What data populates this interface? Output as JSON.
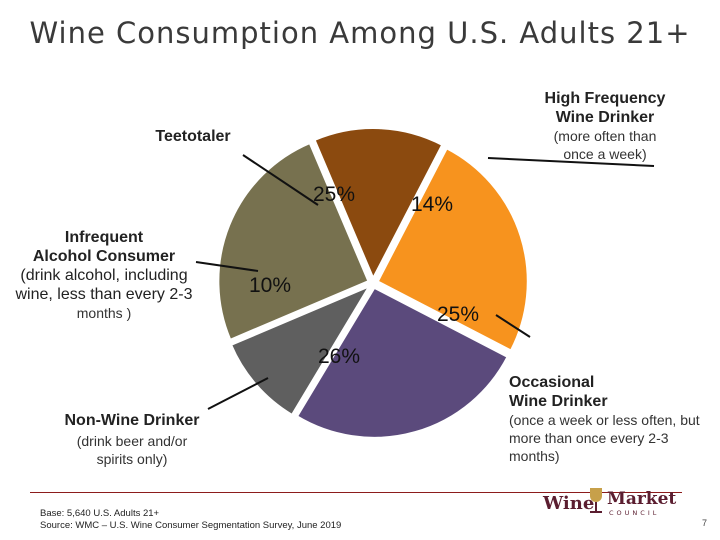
{
  "title": "Wine Consumption Among U.S. Adults 21+",
  "chart_data": {
    "type": "pie",
    "title": "Wine Consumption Among U.S. Adults 21+",
    "slices": [
      {
        "name": "High Frequency Wine Drinker",
        "detail": "(more often than once a week)",
        "value": 14,
        "label": "14%",
        "color": "#8b4a0f"
      },
      {
        "name": "Occasional Wine Drinker",
        "detail": "(once a week or less often, but more than once every 2-3 months)",
        "value": 25,
        "label": "25%",
        "color": "#f7931e"
      },
      {
        "name": "Non-Wine Drinker",
        "detail": "(drink beer and/or spirits only)",
        "value": 26,
        "label": "26%",
        "color": "#5b4a7c"
      },
      {
        "name": "Infrequent Alcohol Consumer",
        "detail": "(drink alcohol, including wine, less than every 2-3 months )",
        "value": 10,
        "label": "10%",
        "color": "#5f5f5f"
      },
      {
        "name": "Teetotaler",
        "detail": "",
        "value": 25,
        "label": "25%",
        "color": "#77714f"
      }
    ]
  },
  "labels": {
    "high_name_1": "High Frequency",
    "high_name_2": "Wine Drinker",
    "high_detail": "(more often than once a week)",
    "teetotaler": "Teetotaler",
    "infrequent_name_1": "Infrequent",
    "infrequent_name_2": "Alcohol Consumer",
    "infrequent_detail_1": "(drink alcohol, including",
    "infrequent_detail_2": "wine, less than every 2-3",
    "infrequent_detail_3": "months )",
    "nonwine_name": "Non-Wine Drinker",
    "nonwine_detail": "(drink beer and/or spirits only)",
    "occasional_name_1": "Occasional",
    "occasional_name_2": "Wine Drinker",
    "occasional_detail": "(once a week or less often, but more than once every 2-3 months)"
  },
  "footer": {
    "base": "Base: 5,640 U.S. Adults 21+",
    "source": "Source: WMC – U.S. Wine Consumer Segmentation Survey, June 2019"
  },
  "logo": {
    "word1": "Wine",
    "word2": "Market",
    "word3": "COUNCIL"
  },
  "page_number": "7"
}
